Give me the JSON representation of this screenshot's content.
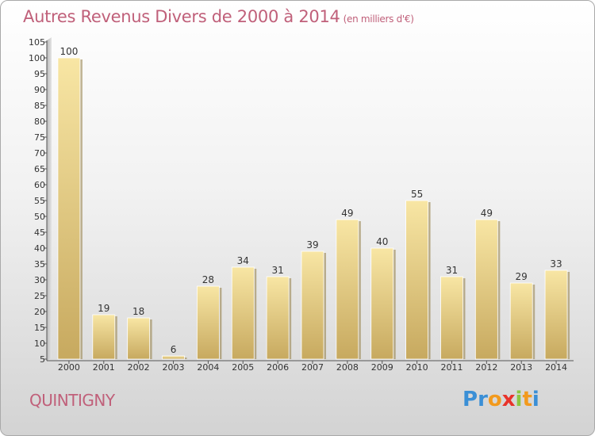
{
  "title": "Autres Revenus Divers de 2000 à 2014",
  "subtitle": "(en milliers d'€)",
  "town": "QUINTIGNY",
  "logo": {
    "letters": [
      "P",
      "r",
      "o",
      "x",
      "i",
      "t",
      "i"
    ],
    "colors": [
      "#3a8fd6",
      "#3a8fd6",
      "#f29a1d",
      "#e8332a",
      "#8cc63f",
      "#f29a1d",
      "#3a8fd6"
    ]
  },
  "colors": {
    "bar_light": "#f7e3a0",
    "bar_dark": "#c8aa60",
    "title": "#c0607a"
  },
  "chart_data": {
    "type": "bar",
    "title": "Autres Revenus Divers de 2000 à 2014",
    "subtitle": "(en milliers d'€)",
    "categories": [
      "2000",
      "2001",
      "2002",
      "2003",
      "2004",
      "2005",
      "2006",
      "2007",
      "2008",
      "2009",
      "2010",
      "2011",
      "2012",
      "2013",
      "2014"
    ],
    "values": [
      100,
      19,
      18,
      6,
      28,
      34,
      31,
      39,
      49,
      40,
      55,
      31,
      49,
      29,
      33
    ],
    "ylim": [
      5,
      105
    ],
    "yticks": [
      5,
      10,
      15,
      20,
      25,
      30,
      35,
      40,
      45,
      50,
      55,
      60,
      65,
      70,
      75,
      80,
      85,
      90,
      95,
      100,
      105
    ],
    "grid": false,
    "legend": "none"
  }
}
